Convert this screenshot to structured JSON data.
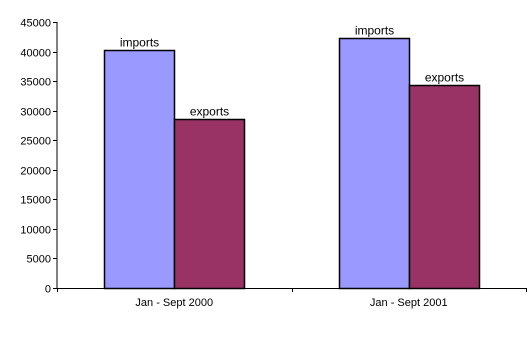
{
  "chart_data": {
    "type": "bar",
    "categories": [
      "Jan - Sept 2000",
      "Jan - Sept 2001"
    ],
    "series": [
      {
        "name": "imports",
        "values": [
          40200,
          42300
        ],
        "color": "#9999ff"
      },
      {
        "name": "exports",
        "values": [
          28600,
          34400
        ],
        "color": "#993366"
      }
    ],
    "title": "",
    "xlabel": "",
    "ylabel": "",
    "ylim": [
      0,
      45000
    ],
    "yticks": [
      0,
      5000,
      10000,
      15000,
      20000,
      25000,
      30000,
      35000,
      40000,
      45000
    ],
    "grid": false,
    "legend": "none",
    "data_labels": "series name above each bar"
  }
}
